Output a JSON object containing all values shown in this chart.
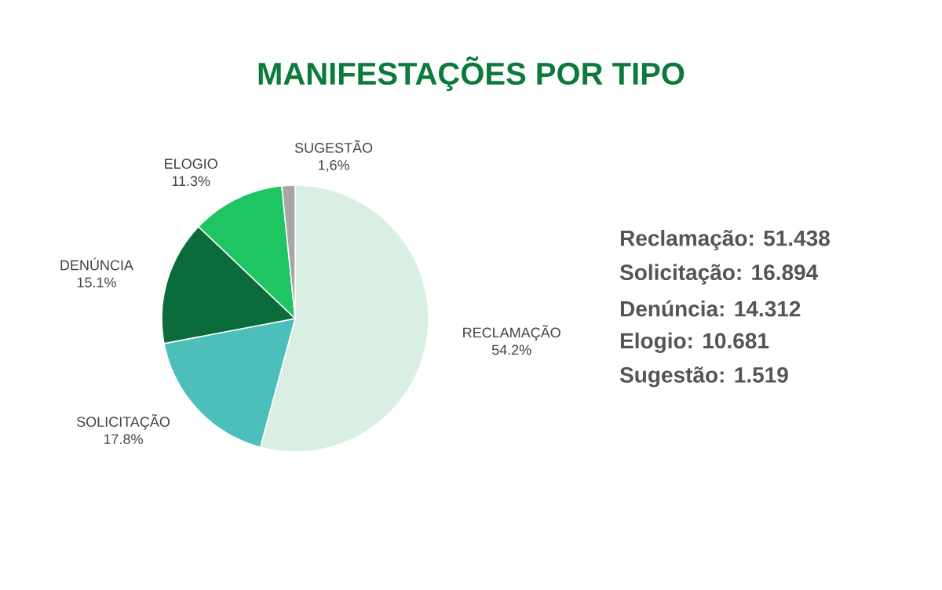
{
  "chart_data": {
    "type": "pie",
    "title": "MANIFESTAÇÕES POR TIPO",
    "categories": [
      "RECLAMAÇÃO",
      "SOLICITAÇÃO",
      "DENÚNCIA",
      "ELOGIO",
      "SUGESTÃO"
    ],
    "values": [
      54.2,
      17.8,
      15.1,
      11.3,
      1.6
    ],
    "value_labels": [
      "54.2%",
      "17.8%",
      "15.1%",
      "11.3%",
      "1,6%"
    ],
    "colors": [
      "#d9efe3",
      "#4cbfbb",
      "#0b6b3a",
      "#1fc463",
      "#a6a6a6"
    ],
    "annotations": [
      "Reclamação: 51.438",
      "Solicitação: 16.894",
      "Denúncia: 14.312",
      "Elogio: 10.681",
      "Sugestão: 1.519"
    ]
  }
}
